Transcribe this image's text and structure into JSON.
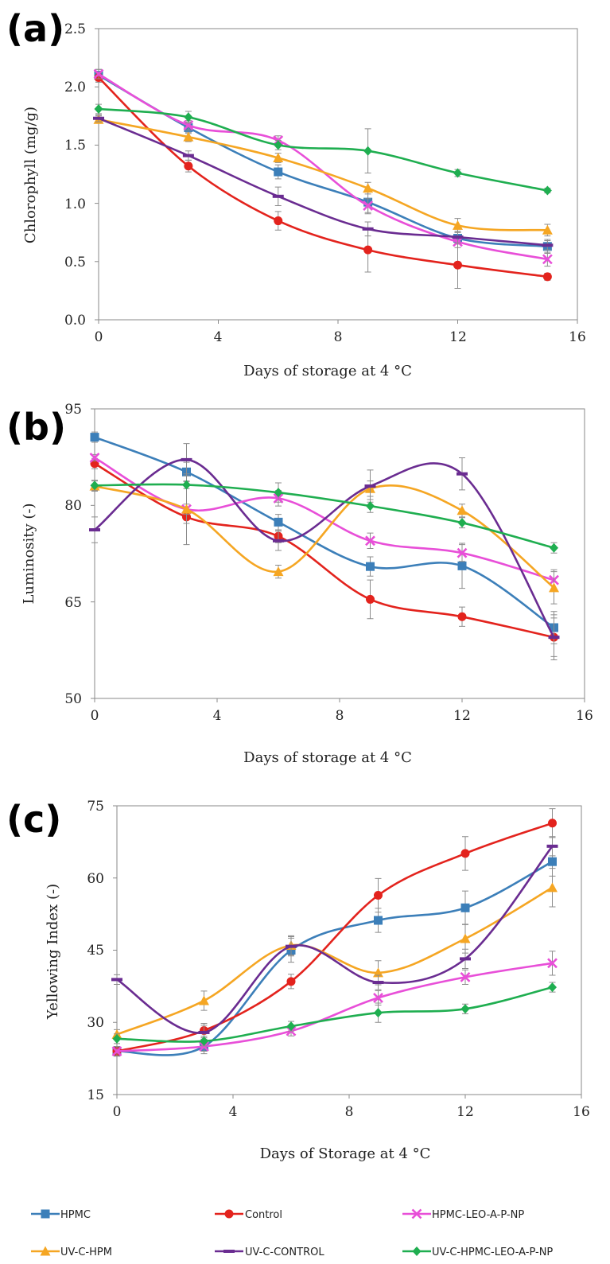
{
  "chart_data": [
    {
      "panel": "(a)",
      "type": "line",
      "xlabel": "Days of storage at 4 °C",
      "ylabel": "Chlorophyll (mg/g)",
      "xlim": [
        0,
        16
      ],
      "ylim": [
        0.0,
        2.5
      ],
      "xticks": [
        "0",
        "4",
        "8",
        "12",
        "16"
      ],
      "yticks": [
        "0.0",
        "0.5",
        "1.0",
        "1.5",
        "2.0",
        "2.5"
      ],
      "ytick_values": [
        0.0,
        0.5,
        1.0,
        1.5,
        2.0,
        2.5
      ],
      "x": [
        0,
        3,
        6,
        9,
        12,
        15
      ],
      "series": [
        {
          "name": "HPMC",
          "values": [
            2.1,
            1.65,
            1.27,
            1.01,
            0.7,
            0.63
          ],
          "err": [
            0.05,
            0.05,
            0.06,
            0.1,
            0.05,
            0.06
          ]
        },
        {
          "name": "Control",
          "values": [
            2.08,
            1.32,
            0.85,
            0.6,
            0.47,
            0.37
          ],
          "err": [
            0.04,
            0.05,
            0.08,
            0.19,
            0.2,
            0.03
          ]
        },
        {
          "name": "HPMC-LEO-A-P-NP",
          "values": [
            2.11,
            1.67,
            1.54,
            0.98,
            0.67,
            0.52
          ],
          "err": [
            0.04,
            0.04,
            0.04,
            0.06,
            0.05,
            0.06
          ]
        },
        {
          "name": "UV-C-HPM",
          "values": [
            1.72,
            1.57,
            1.39,
            1.13,
            0.81,
            0.77
          ],
          "err": [
            0.03,
            0.04,
            0.04,
            0.05,
            0.06,
            0.05
          ]
        },
        {
          "name": "UV-C-CONTROL",
          "values": [
            1.73,
            1.41,
            1.06,
            0.78,
            0.71,
            0.64
          ],
          "err": [
            0.03,
            0.04,
            0.08,
            0.06,
            0.05,
            0.04
          ]
        },
        {
          "name": "UV-C-HPMC-LEO-A-P-NP",
          "values": [
            1.81,
            1.74,
            1.5,
            1.45,
            1.26,
            1.11
          ],
          "err": [
            0.04,
            0.05,
            0.04,
            0.19,
            0.03,
            0.02
          ]
        }
      ]
    },
    {
      "panel": "(b)",
      "type": "line",
      "xlabel": "Days of storage at 4 °C",
      "ylabel": "Luminosity (-)",
      "xlim": [
        0,
        16
      ],
      "ylim": [
        50,
        95
      ],
      "xticks": [
        "0",
        "4",
        "8",
        "12",
        "16"
      ],
      "yticks": [
        "50",
        "65",
        "80",
        "95"
      ],
      "ytick_values": [
        50,
        65,
        80,
        95
      ],
      "x": [
        0,
        3,
        6,
        9,
        12,
        15
      ],
      "series": [
        {
          "name": "HPMC",
          "values": [
            90.6,
            85.2,
            77.4,
            70.5,
            70.6,
            61.0
          ],
          "err": [
            0.8,
            1.5,
            1.2,
            1.5,
            3.5,
            2.5
          ]
        },
        {
          "name": "Control",
          "values": [
            86.5,
            78.2,
            75.2,
            65.4,
            62.7,
            59.5
          ],
          "err": [
            0.8,
            1.0,
            1.0,
            3.0,
            1.5,
            3.5
          ]
        },
        {
          "name": "HPMC-LEO-A-P-NP",
          "values": [
            87.4,
            79.4,
            81.1,
            74.5,
            72.6,
            68.4
          ],
          "err": [
            0.5,
            0.8,
            1.2,
            1.2,
            1.3,
            1.6
          ]
        },
        {
          "name": "UV-C-HPM",
          "values": [
            83.0,
            79.4,
            69.7,
            82.6,
            79.2,
            67.2
          ],
          "err": [
            0.8,
            5.5,
            1.0,
            1.2,
            1.0,
            2.5
          ]
        },
        {
          "name": "UV-C-CONTROL",
          "values": [
            76.2,
            87.1,
            74.5,
            83.0,
            84.9,
            59.5
          ],
          "err": [
            2.0,
            2.5,
            1.5,
            2.5,
            2.5,
            3.0
          ]
        },
        {
          "name": "UV-C-HPMC-LEO-A-P-NP",
          "values": [
            83.1,
            83.2,
            82.0,
            79.9,
            77.3,
            73.4
          ],
          "err": [
            0.8,
            0.6,
            1.5,
            1.0,
            0.8,
            0.8
          ]
        }
      ]
    },
    {
      "panel": "(c)",
      "type": "line",
      "xlabel": "Days of Storage at 4 °C",
      "ylabel": "Yellowing Index (-)",
      "xlim": [
        0,
        16
      ],
      "ylim": [
        15,
        75
      ],
      "xticks": [
        "0",
        "4",
        "8",
        "12",
        "16"
      ],
      "yticks": [
        "15",
        "30",
        "45",
        "60",
        "75"
      ],
      "ytick_values": [
        15,
        30,
        45,
        60,
        75
      ],
      "x": [
        0,
        3,
        6,
        9,
        12,
        15
      ],
      "series": [
        {
          "name": "HPMC",
          "values": [
            24.0,
            25.0,
            45.0,
            51.2,
            53.8,
            63.4
          ],
          "err": [
            1.0,
            1.5,
            2.5,
            2.5,
            3.5,
            3.0
          ]
        },
        {
          "name": "Control",
          "values": [
            24.0,
            28.3,
            38.5,
            56.4,
            65.1,
            71.4
          ],
          "err": [
            1.0,
            1.5,
            1.5,
            3.5,
            3.5,
            3.0
          ]
        },
        {
          "name": "HPMC-LEO-A-P-NP",
          "values": [
            24.0,
            25.0,
            28.2,
            35.1,
            39.4,
            42.3
          ],
          "err": [
            1.0,
            1.0,
            1.0,
            1.5,
            1.5,
            2.5
          ]
        },
        {
          "name": "UV-C-HPM",
          "values": [
            27.5,
            34.5,
            46.0,
            40.3,
            47.4,
            58.0
          ],
          "err": [
            1.0,
            2.0,
            2.0,
            2.5,
            3.0,
            4.0
          ]
        },
        {
          "name": "UV-C-CONTROL",
          "values": [
            38.9,
            27.9,
            45.8,
            38.3,
            43.2,
            66.6
          ],
          "err": [
            1.0,
            1.5,
            2.0,
            1.5,
            2.0,
            2.0
          ]
        },
        {
          "name": "UV-C-HPMC-LEO-A-P-NP",
          "values": [
            26.6,
            26.1,
            29.2,
            32.0,
            32.8,
            37.3
          ],
          "err": [
            1.0,
            1.0,
            1.0,
            2.0,
            1.0,
            1.0
          ]
        }
      ]
    }
  ],
  "series_styles": [
    {
      "name": "HPMC",
      "color": "#3c7fb9",
      "marker": "square"
    },
    {
      "name": "Control",
      "color": "#e3231d",
      "marker": "circle"
    },
    {
      "name": "HPMC-LEO-A-P-NP",
      "color": "#e84fd8",
      "marker": "x"
    },
    {
      "name": "UV-C-HPM",
      "color": "#f5a623",
      "marker": "triangle"
    },
    {
      "name": "UV-C-CONTROL",
      "color": "#6a2c91",
      "marker": "bar"
    },
    {
      "name": "UV-C-HPMC-LEO-A-P-NP",
      "color": "#1fae50",
      "marker": "diamond"
    }
  ],
  "legend": {
    "items": [
      "HPMC",
      "Control",
      "HPMC-LEO-A-P-NP",
      "UV-C-HPM",
      "UV-C-CONTROL",
      "UV-C-HPMC-LEO-A-P-NP"
    ]
  }
}
